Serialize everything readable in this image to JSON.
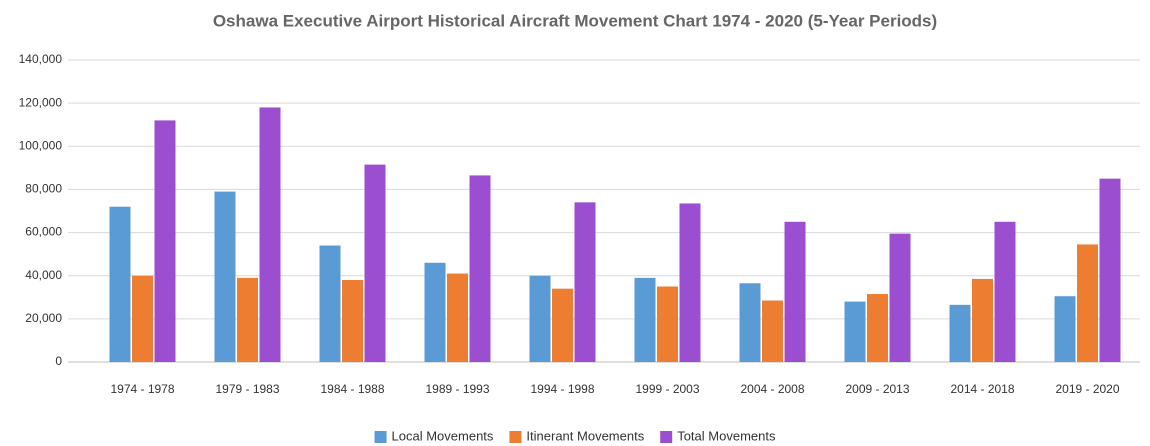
{
  "chart_data": {
    "type": "bar",
    "title": "Oshawa Executive Airport Historical Aircraft Movement Chart 1974 - 2020 (5-Year Periods)",
    "categories": [
      "1974 - 1978",
      "1979 - 1983",
      "1984 - 1988",
      "1989 - 1993",
      "1994 - 1998",
      "1999 - 2003",
      "2004 - 2008",
      "2009 - 2013",
      "2014 - 2018",
      "2019 - 2020"
    ],
    "series": [
      {
        "name": "Local Movements",
        "color": "#5b9bd5",
        "values": [
          72000,
          79000,
          54000,
          46000,
          40000,
          39000,
          36500,
          28000,
          26500,
          30500
        ]
      },
      {
        "name": "Itinerant Movements",
        "color": "#ed7d31",
        "values": [
          40000,
          39000,
          38000,
          41000,
          34000,
          35000,
          28500,
          31500,
          38500,
          54500
        ]
      },
      {
        "name": "Total Movements",
        "color": "#9b4fd0",
        "values": [
          112000,
          118000,
          91500,
          86500,
          74000,
          73500,
          65000,
          59500,
          65000,
          85000
        ]
      }
    ],
    "ylim": [
      0,
      140000
    ],
    "yticks": [
      0,
      {
        "value": 20000,
        "label": "20,000"
      },
      {
        "value": 40000,
        "label": "40,000"
      },
      {
        "value": 60000,
        "label": "60,000"
      },
      {
        "value": 80000,
        "label": "80,000"
      },
      {
        "value": 100000,
        "label": "100,000"
      },
      {
        "value": 120000,
        "label": "120,000"
      },
      {
        "value": 140000,
        "label": "140,000"
      }
    ],
    "grid": true,
    "legend": "bottom"
  }
}
